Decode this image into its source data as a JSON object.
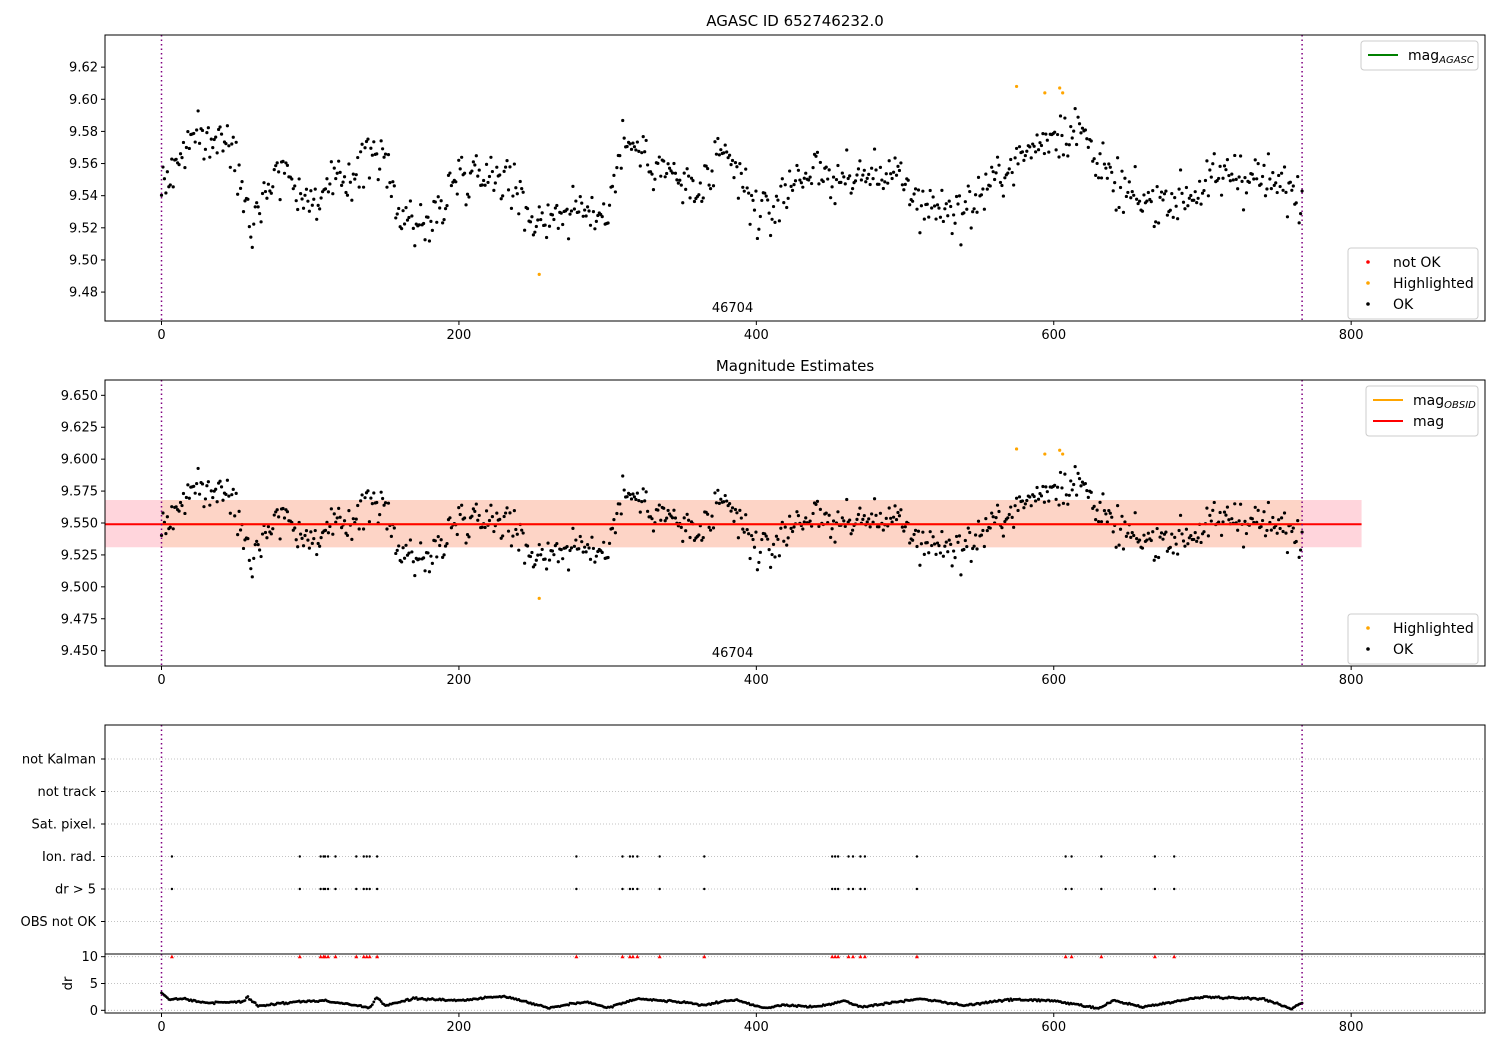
{
  "chart_data": [
    {
      "type": "scatter",
      "title": "AGASC ID 652746232.0",
      "xlim": [
        -38,
        890
      ],
      "ylim": [
        9.462,
        9.64
      ],
      "xticks": [
        0,
        200,
        400,
        600,
        800
      ],
      "yticks": [
        9.48,
        9.5,
        9.52,
        9.54,
        9.56,
        9.58,
        9.6,
        9.62
      ],
      "vlines": [
        0,
        767
      ],
      "obsid_label": "46704",
      "obsid_label_x": 384,
      "legends": [
        {
          "position": "upper right",
          "entries": [
            {
              "label": "mag",
              "sub": "AGASC",
              "color": "#008000",
              "kind": "line"
            }
          ]
        },
        {
          "position": "lower right",
          "entries": [
            {
              "label": "not OK",
              "color": "#ff0000",
              "kind": "dot"
            },
            {
              "label": "Highlighted",
              "color": "#ffa500",
              "kind": "dot"
            },
            {
              "label": "OK",
              "color": "#000000",
              "kind": "dot"
            }
          ]
        }
      ],
      "series": [
        {
          "name": "OK",
          "color": "#000000",
          "segments": [
            [
              0,
              9.545
            ],
            [
              20,
              9.575
            ],
            [
              40,
              9.575
            ],
            [
              50,
              9.565
            ],
            [
              60,
              9.525
            ],
            [
              80,
              9.56
            ],
            [
              100,
              9.535
            ],
            [
              130,
              9.555
            ],
            [
              145,
              9.57
            ],
            [
              160,
              9.53
            ],
            [
              180,
              9.52
            ],
            [
              200,
              9.555
            ],
            [
              230,
              9.555
            ],
            [
              250,
              9.525
            ],
            [
              270,
              9.53
            ],
            [
              300,
              9.53
            ],
            [
              310,
              9.575
            ],
            [
              340,
              9.555
            ],
            [
              360,
              9.54
            ],
            [
              380,
              9.565
            ],
            [
              400,
              9.53
            ],
            [
              410,
              9.53
            ],
            [
              430,
              9.555
            ],
            [
              460,
              9.55
            ],
            [
              490,
              9.555
            ],
            [
              510,
              9.535
            ],
            [
              540,
              9.53
            ],
            [
              560,
              9.55
            ],
            [
              580,
              9.565
            ],
            [
              600,
              9.58
            ],
            [
              620,
              9.58
            ],
            [
              640,
              9.545
            ],
            [
              660,
              9.535
            ],
            [
              690,
              9.54
            ],
            [
              720,
              9.555
            ],
            [
              740,
              9.55
            ],
            [
              767,
              9.54
            ]
          ]
        },
        {
          "name": "Highlighted",
          "color": "#ffa500",
          "points": [
            [
              575,
              9.608
            ],
            [
              594,
              9.604
            ],
            [
              604,
              9.607
            ],
            [
              606,
              9.604
            ],
            [
              254,
              9.491
            ]
          ]
        }
      ]
    },
    {
      "type": "scatter",
      "title": "Magnitude Estimates",
      "xlim": [
        -38,
        890
      ],
      "ylim": [
        9.438,
        9.662
      ],
      "xticks": [
        0,
        200,
        400,
        600,
        800
      ],
      "yticks": [
        9.45,
        9.475,
        9.5,
        9.525,
        9.55,
        9.575,
        9.6,
        9.625,
        9.65
      ],
      "yticklabels": [
        "9.450",
        "9.475",
        "9.500",
        "9.525",
        "9.550",
        "9.575",
        "9.600",
        "9.625",
        "9.650"
      ],
      "vlines": [
        0,
        767
      ],
      "obsid_label": "46704",
      "obsid_label_x": 384,
      "mag_line": 9.549,
      "band_outer": {
        "x": [
          -38,
          807
        ],
        "y": [
          9.531,
          9.568
        ],
        "color": "#ffd5dc"
      },
      "band_inner": {
        "x": [
          0,
          767
        ],
        "y": [
          9.531,
          9.568
        ],
        "color": "#fdd4c6"
      },
      "legends": [
        {
          "position": "upper right",
          "entries": [
            {
              "label": "mag",
              "sub": "OBSID",
              "color": "#ffa500",
              "kind": "line"
            },
            {
              "label": "mag",
              "color": "#ff0000",
              "kind": "line"
            }
          ]
        },
        {
          "position": "lower right",
          "entries": [
            {
              "label": "Highlighted",
              "color": "#ffa500",
              "kind": "dot"
            },
            {
              "label": "OK",
              "color": "#000000",
              "kind": "dot"
            }
          ]
        }
      ]
    },
    {
      "type": "scatter",
      "title": "",
      "xlim": [
        -38,
        890
      ],
      "xticks": [
        0,
        200,
        400,
        600,
        800
      ],
      "vlines": [
        0,
        767
      ],
      "flag_rows": [
        "not Kalman",
        "not track",
        "Sat. pixel.",
        "Ion. rad.",
        "dr > 5",
        "OBS not OK"
      ],
      "flag_points": {
        "Ion. rad.": [
          7,
          93,
          107,
          109,
          110,
          112,
          117,
          131,
          136,
          138,
          140,
          145,
          279,
          310,
          315,
          317,
          320,
          335,
          365,
          451,
          453,
          455,
          462,
          465,
          470,
          473,
          508,
          608,
          612,
          632,
          668,
          681
        ],
        "dr > 5": [
          7,
          93,
          107,
          109,
          110,
          112,
          117,
          131,
          136,
          138,
          140,
          145,
          279,
          310,
          315,
          317,
          320,
          335,
          365,
          451,
          453,
          455,
          462,
          465,
          470,
          473,
          508,
          608,
          612,
          632,
          668,
          681
        ]
      },
      "dr": {
        "ylabel": "dr",
        "ylim": [
          -0.5,
          10.5
        ],
        "yticks": [
          0,
          5,
          10
        ],
        "clipped_value": 10,
        "clipped_color": "#ff0000",
        "segments": [
          [
            0,
            3.2
          ],
          [
            5,
            2.0
          ],
          [
            15,
            2.2
          ],
          [
            30,
            1.4
          ],
          [
            55,
            1.6
          ],
          [
            58,
            2.5
          ],
          [
            65,
            0.8
          ],
          [
            90,
            1.6
          ],
          [
            110,
            1.8
          ],
          [
            140,
            0.5
          ],
          [
            145,
            2.4
          ],
          [
            150,
            0.9
          ],
          [
            170,
            2.2
          ],
          [
            200,
            1.8
          ],
          [
            230,
            2.7
          ],
          [
            260,
            0.5
          ],
          [
            285,
            1.6
          ],
          [
            300,
            0.5
          ],
          [
            320,
            2.2
          ],
          [
            345,
            1.6
          ],
          [
            365,
            1.0
          ],
          [
            385,
            2.0
          ],
          [
            405,
            0.4
          ],
          [
            420,
            1.0
          ],
          [
            440,
            0.6
          ],
          [
            460,
            1.8
          ],
          [
            470,
            0.6
          ],
          [
            510,
            2.2
          ],
          [
            540,
            0.9
          ],
          [
            570,
            2.0
          ],
          [
            600,
            1.8
          ],
          [
            630,
            0.3
          ],
          [
            640,
            1.8
          ],
          [
            660,
            0.6
          ],
          [
            685,
            1.8
          ],
          [
            700,
            2.5
          ],
          [
            740,
            2.2
          ],
          [
            760,
            0.3
          ],
          [
            767,
            1.5
          ]
        ]
      }
    }
  ]
}
